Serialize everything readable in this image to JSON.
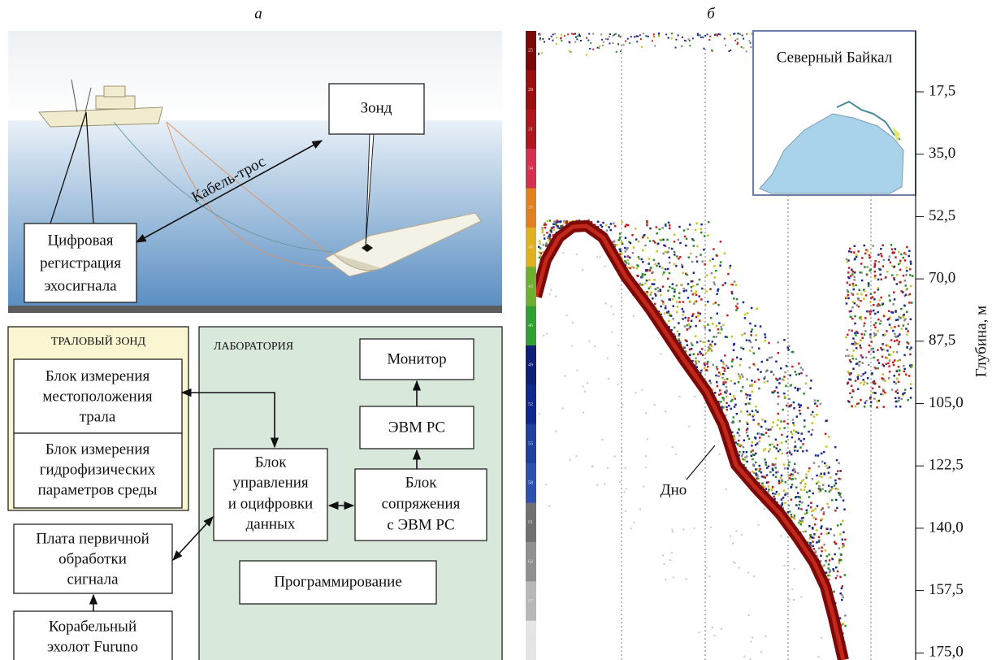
{
  "panel_a": {
    "label": "а",
    "probe": "Зонд",
    "cable": "Кабель-трос",
    "recording": [
      "Цифровая",
      "регистрация",
      "эхосигнала"
    ]
  },
  "trawl_probe": {
    "title": "ТРАЛОВЫЙ ЗОНД",
    "blocks": [
      [
        "Блок измерения",
        "местоположения",
        "трала"
      ],
      [
        "Блок измерения",
        "гидрофизических",
        "параметров среды"
      ]
    ]
  },
  "laboratory": {
    "title": "ЛАБОРАТОРИЯ",
    "monitor": "Монитор",
    "pc": "ЭВМ PC",
    "interface": [
      "Блок",
      "сопряжения",
      "с ЭВМ PC"
    ],
    "control": [
      "Блок",
      "управления",
      "и оцифровки",
      "данных"
    ],
    "programming": "Программирование"
  },
  "board": [
    "Плата первичной",
    "обработки",
    "сигнала"
  ],
  "echosounder": [
    "Корабельный",
    "эхолот Furuno"
  ],
  "panel_b": {
    "label": "б",
    "inset": "Северный Байкал",
    "bottom": "Дно",
    "axis_title": "Глубина, м",
    "depth_ticks": [
      "17,5",
      "35,0",
      "52,5",
      "70,0",
      "87,5",
      "105,0",
      "122,5",
      "140,0",
      "157,5",
      "175,0"
    ],
    "color_scale": [
      "25",
      "28",
      "31",
      "34",
      "37",
      "40",
      "43",
      "46",
      "49",
      "52",
      "55",
      "58",
      "61",
      "64",
      "67",
      "70"
    ]
  }
}
